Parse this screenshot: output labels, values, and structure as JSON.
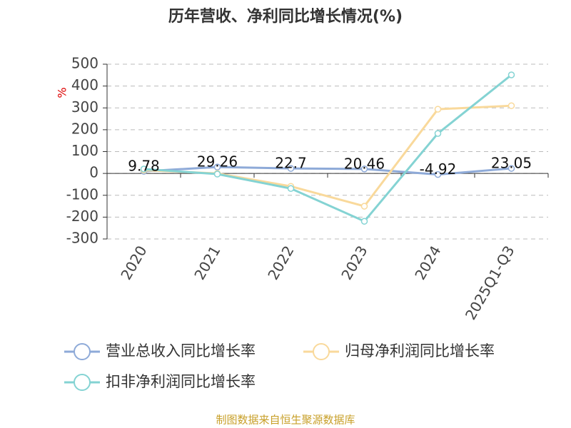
{
  "chart_data": {
    "type": "line",
    "title": "历年营收、净利同比增长情况(%)",
    "y_label": "%",
    "source": "制图数据来自恒生聚源数据库",
    "categories": [
      "2020",
      "2021",
      "2022",
      "2023",
      "2024",
      "2025Q1-Q3"
    ],
    "series": [
      {
        "name": "营业总收入同比增长率",
        "color": "#8eaad8",
        "values": [
          9.78,
          29.26,
          22.7,
          20.46,
          -4.92,
          23.05
        ],
        "show_labels": true
      },
      {
        "name": "归母净利润同比增长率",
        "color": "#f9d99b",
        "values": [
          15,
          0,
          -59,
          -150,
          294,
          310
        ]
      },
      {
        "name": "扣非净利润同比增长率",
        "color": "#84d3d3",
        "values": [
          20,
          -3,
          -69,
          -219,
          183,
          451
        ]
      }
    ],
    "ylim": [
      -300,
      500
    ],
    "yticks": [
      -300,
      -200,
      -100,
      0,
      100,
      200,
      300,
      400,
      500
    ],
    "grid": true
  }
}
